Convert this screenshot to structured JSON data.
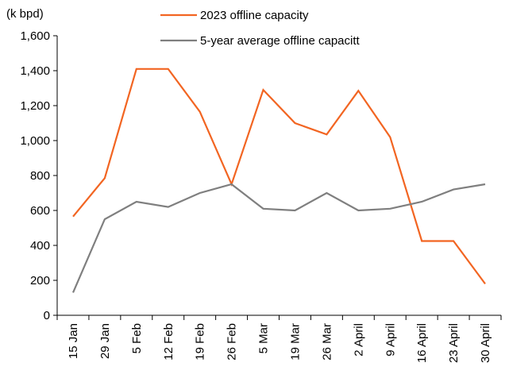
{
  "chart_data": {
    "type": "line",
    "unit_label": "(k bpd)",
    "categories": [
      "15 Jan",
      "29 Jan",
      "5 Feb",
      "12 Feb",
      "19 Feb",
      "26 Feb",
      "5 Mar",
      "19 Mar",
      "26 Mar",
      "2 April",
      "9 April",
      "16 April",
      "23 April",
      "30 April"
    ],
    "y_ticks": [
      "0",
      "200",
      "400",
      "600",
      "800",
      "1,000",
      "1,200",
      "1,400",
      "1,600"
    ],
    "ylim": [
      0,
      1600
    ],
    "grid": false,
    "legend_placement": "top",
    "series": [
      {
        "name": "2023 offline capacity",
        "color": "#f26522",
        "values": [
          565,
          785,
          1410,
          1410,
          1165,
          750,
          1290,
          1100,
          1035,
          1285,
          1020,
          425,
          425,
          180
        ]
      },
      {
        "name": "5-year average offline capacitt",
        "color": "#7f7f7f",
        "values": [
          130,
          550,
          650,
          620,
          700,
          750,
          610,
          600,
          700,
          600,
          610,
          650,
          720,
          750
        ]
      }
    ]
  }
}
